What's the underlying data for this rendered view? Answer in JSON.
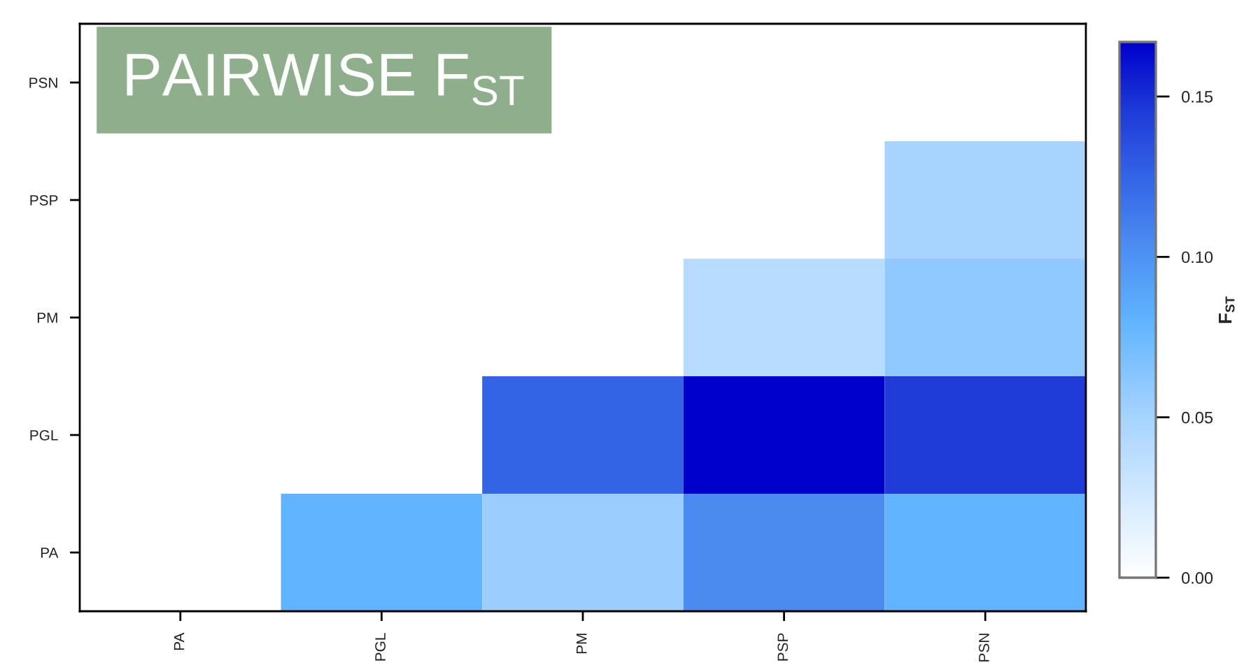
{
  "chart_data": {
    "type": "heatmap",
    "title": "PAIRWISE F$_{ST}$",
    "clabel": "F$_{ST}$",
    "categories": [
      "PA",
      "PGL",
      "PM",
      "PSP",
      "PSN"
    ],
    "y_categories": [
      "PSN",
      "PSP",
      "PM",
      "PGL",
      "PA"
    ],
    "cells": [
      [
        null,
        null,
        null,
        null,
        null
      ],
      [
        null,
        null,
        null,
        null,
        0.05
      ],
      [
        null,
        null,
        null,
        0.04,
        0.06
      ],
      [
        null,
        null,
        0.125,
        0.167,
        0.145
      ],
      [
        null,
        0.08,
        0.055,
        0.105,
        0.08
      ]
    ],
    "clim": [
      0,
      0.167
    ],
    "cticks": [
      {
        "value": 0,
        "label": "0.00"
      },
      0.05,
      {
        "value": 0.1,
        "label": "0.10"
      },
      0.15
    ]
  }
}
